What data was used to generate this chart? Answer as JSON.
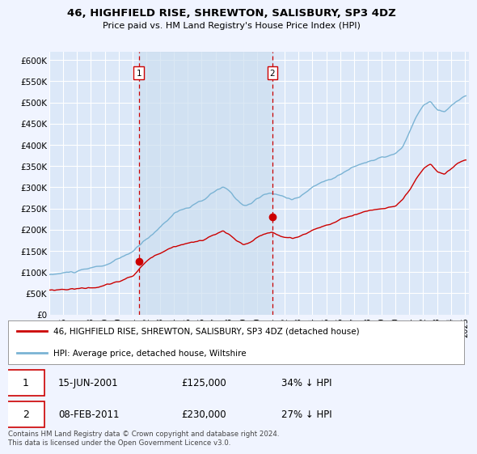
{
  "title": "46, HIGHFIELD RISE, SHREWTON, SALISBURY, SP3 4DZ",
  "subtitle": "Price paid vs. HM Land Registry's House Price Index (HPI)",
  "bg_color": "#f0f4ff",
  "plot_bg_color": "#dce8f8",
  "shade_color": "#cddff0",
  "grid_color": "#d8e4f0",
  "hpi_color": "#7ab3d4",
  "price_color": "#cc0000",
  "dashed_color": "#cc0000",
  "legend_label_price": "46, HIGHFIELD RISE, SHREWTON, SALISBURY, SP3 4DZ (detached house)",
  "legend_label_hpi": "HPI: Average price, detached house, Wiltshire",
  "sale1_date": "15-JUN-2001",
  "sale1_price": "£125,000",
  "sale1_pct": "34% ↓ HPI",
  "sale2_date": "08-FEB-2011",
  "sale2_price": "£230,000",
  "sale2_pct": "27% ↓ HPI",
  "footer": "Contains HM Land Registry data © Crown copyright and database right 2024.\nThis data is licensed under the Open Government Licence v3.0.",
  "ylim": [
    0,
    620000
  ],
  "yticks": [
    0,
    50000,
    100000,
    150000,
    200000,
    250000,
    300000,
    350000,
    400000,
    450000,
    500000,
    550000,
    600000
  ],
  "sale1_x": 2001.46,
  "sale1_y": 125000,
  "sale2_x": 2011.1,
  "sale2_y": 230000,
  "xlim_left": 1995.0,
  "xlim_right": 2025.3,
  "xtick_years": [
    1995,
    1996,
    1997,
    1998,
    1999,
    2000,
    2001,
    2002,
    2003,
    2004,
    2005,
    2006,
    2007,
    2008,
    2009,
    2010,
    2011,
    2012,
    2013,
    2014,
    2015,
    2016,
    2017,
    2018,
    2019,
    2020,
    2021,
    2022,
    2023,
    2024,
    2025
  ]
}
